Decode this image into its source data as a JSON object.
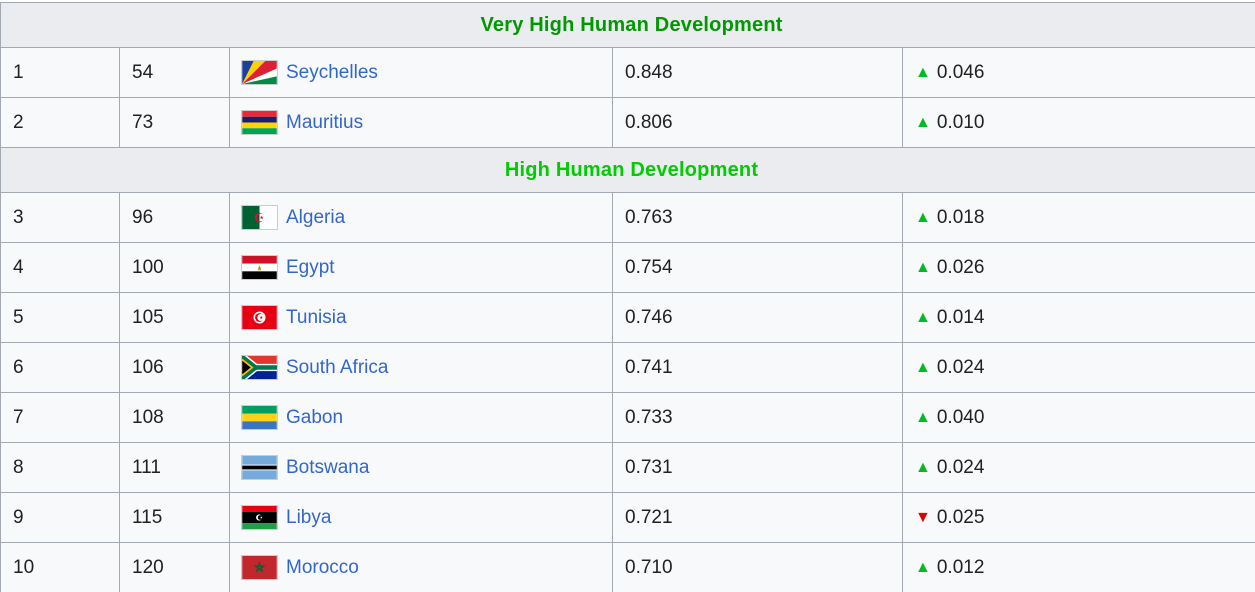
{
  "table": {
    "symbols": {
      "increase": "▲",
      "decrease": "▼"
    },
    "colors": {
      "very_high_header": "#009900",
      "high_header": "#00cc00",
      "increase": "#00bb22",
      "decrease": "#e00000",
      "link": "#3366cc"
    },
    "sections": [
      {
        "header": {
          "label": "Very High Human Development",
          "color": "#009900"
        },
        "rows": [
          {
            "rank": "1",
            "world_rank": "54",
            "country": "Seychelles",
            "flag": "seychelles",
            "flag_icon": "seychelles-flag-icon",
            "hdi": "0.848",
            "change_dir": "up",
            "change": "0.046"
          },
          {
            "rank": "2",
            "world_rank": "73",
            "country": "Mauritius",
            "flag": "mauritius",
            "flag_icon": "mauritius-flag-icon",
            "hdi": "0.806",
            "change_dir": "up",
            "change": "0.010"
          }
        ]
      },
      {
        "header": {
          "label": "High Human Development",
          "color": "#00cc00"
        },
        "rows": [
          {
            "rank": "3",
            "world_rank": "96",
            "country": "Algeria",
            "flag": "algeria",
            "flag_icon": "algeria-flag-icon",
            "hdi": "0.763",
            "change_dir": "up",
            "change": "0.018"
          },
          {
            "rank": "4",
            "world_rank": "100",
            "country": "Egypt",
            "flag": "egypt",
            "flag_icon": "egypt-flag-icon",
            "hdi": "0.754",
            "change_dir": "up",
            "change": "0.026"
          },
          {
            "rank": "5",
            "world_rank": "105",
            "country": "Tunisia",
            "flag": "tunisia",
            "flag_icon": "tunisia-flag-icon",
            "hdi": "0.746",
            "change_dir": "up",
            "change": "0.014"
          },
          {
            "rank": "6",
            "world_rank": "106",
            "country": "South Africa",
            "flag": "south-africa",
            "flag_icon": "south-africa-flag-icon",
            "hdi": "0.741",
            "change_dir": "up",
            "change": "0.024"
          },
          {
            "rank": "7",
            "world_rank": "108",
            "country": "Gabon",
            "flag": "gabon",
            "flag_icon": "gabon-flag-icon",
            "hdi": "0.733",
            "change_dir": "up",
            "change": "0.040"
          },
          {
            "rank": "8",
            "world_rank": "111",
            "country": "Botswana",
            "flag": "botswana",
            "flag_icon": "botswana-flag-icon",
            "hdi": "0.731",
            "change_dir": "up",
            "change": "0.024"
          },
          {
            "rank": "9",
            "world_rank": "115",
            "country": "Libya",
            "flag": "libya",
            "flag_icon": "libya-flag-icon",
            "hdi": "0.721",
            "change_dir": "down",
            "change": "0.025"
          },
          {
            "rank": "10",
            "world_rank": "120",
            "country": "Morocco",
            "flag": "morocco",
            "flag_icon": "morocco-flag-icon",
            "hdi": "0.710",
            "change_dir": "up",
            "change": "0.012"
          }
        ]
      }
    ]
  }
}
